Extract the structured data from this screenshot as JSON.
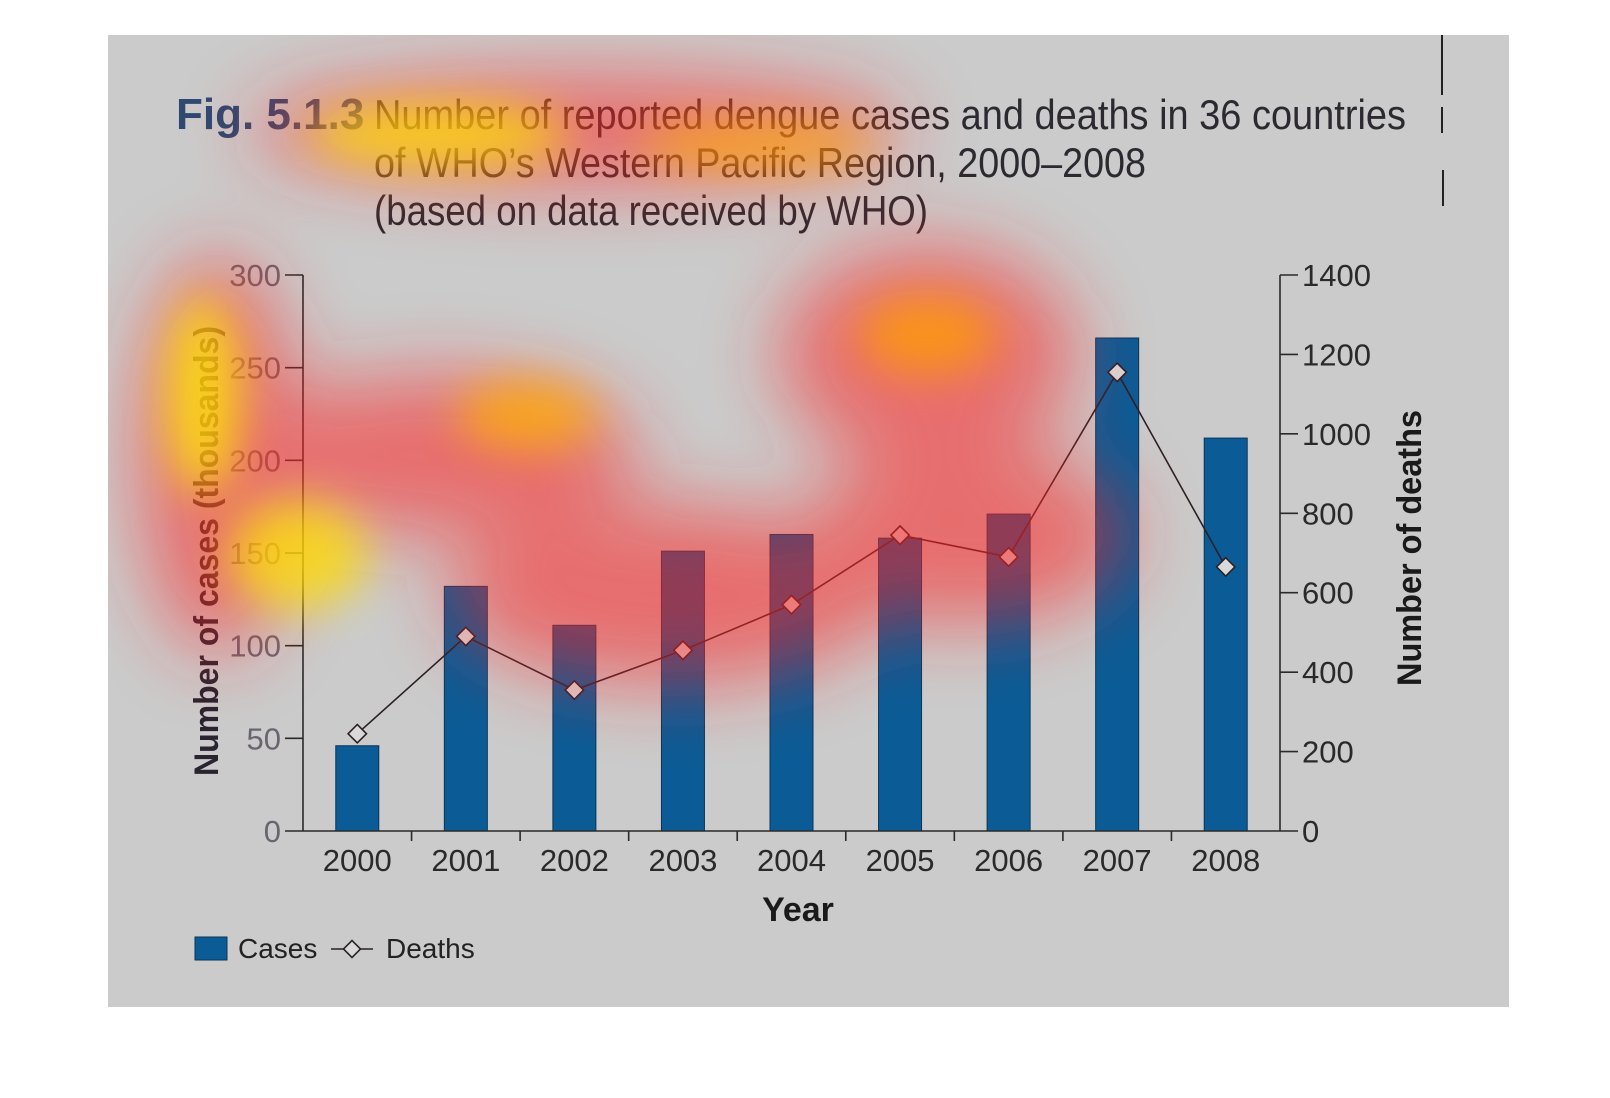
{
  "figure": {
    "label": "Fig. 5.1.3",
    "title_lines": [
      "Number of reported dengue cases and deaths in 36 countries",
      "of WHO’s Western Pacific Region, 2000–2008",
      "(based on data received by WHO)"
    ]
  },
  "colors": {
    "panel": "#cbcbcb",
    "bar": "#0b5c96",
    "bar_stroke": "#0a3556",
    "line": "#2b2025",
    "marker_fill": "#d9d9d9",
    "axis": "#2a2a2a",
    "label_color": "#6a6470",
    "title_label_color": "#2f4a72"
  },
  "chart_data": {
    "type": "bar",
    "categories": [
      "2000",
      "2001",
      "2002",
      "2003",
      "2004",
      "2005",
      "2006",
      "2007",
      "2008"
    ],
    "series": [
      {
        "name": "Cases",
        "type": "bar",
        "axis": "left",
        "values": [
          46,
          132,
          111,
          151,
          160,
          158,
          171,
          266,
          212
        ]
      },
      {
        "name": "Deaths",
        "type": "line",
        "axis": "right",
        "marker": "diamond",
        "values": [
          245,
          490,
          355,
          455,
          570,
          745,
          690,
          1155,
          665
        ]
      }
    ],
    "xlabel": "Year",
    "ylabel": "Number of cases (thousands)",
    "y2label": "Number of deaths",
    "ylim": [
      0,
      300
    ],
    "y2lim": [
      0,
      1400
    ],
    "yticks": [
      0,
      50,
      100,
      150,
      200,
      250,
      300
    ],
    "y2ticks": [
      0,
      200,
      400,
      600,
      800,
      1000,
      1200,
      1400
    ],
    "grid": false,
    "legend": {
      "placement": "bottom-left",
      "entries": [
        "Cases",
        "Deaths"
      ]
    },
    "overlay": "attention heatmap (red-yellow) over title and left axis"
  }
}
